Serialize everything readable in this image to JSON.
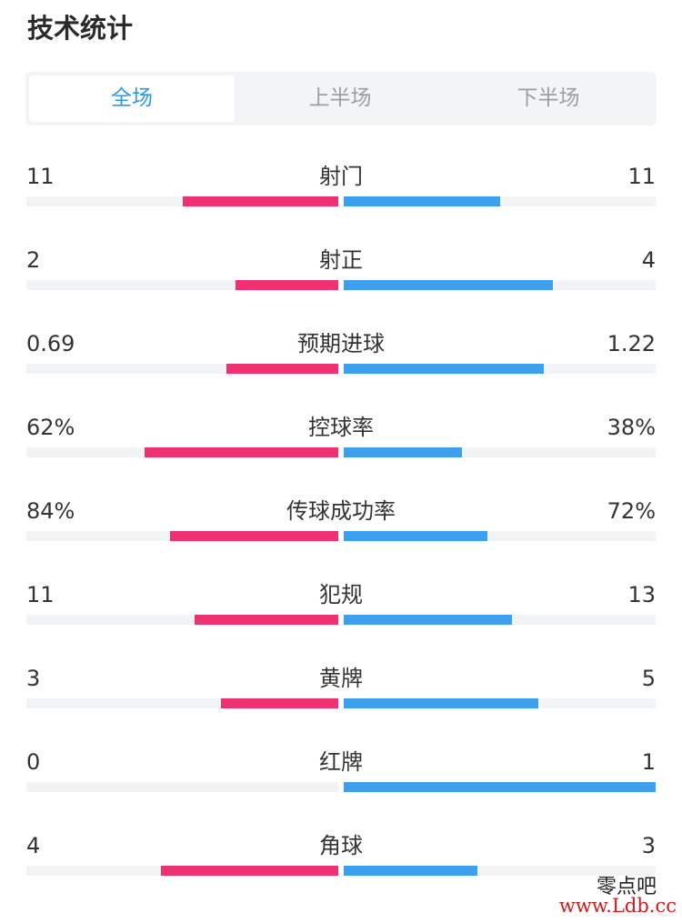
{
  "page_title": "技术统计",
  "tabs": [
    {
      "label": "全场",
      "active": true
    },
    {
      "label": "上半场",
      "active": false
    },
    {
      "label": "下半场",
      "active": false
    }
  ],
  "colors": {
    "home": "#ee3170",
    "away": "#3d9ff0",
    "track": "#f2f3f5",
    "active_tab": "#2b9ae3"
  },
  "stats": [
    {
      "label": "射门",
      "home": "11",
      "away": "11",
      "home_ratio": 0.5,
      "away_ratio": 0.5
    },
    {
      "label": "射正",
      "home": "2",
      "away": "4",
      "home_ratio": 0.33,
      "away_ratio": 0.67
    },
    {
      "label": "预期进球",
      "home": "0.69",
      "away": "1.22",
      "home_ratio": 0.36,
      "away_ratio": 0.64
    },
    {
      "label": "控球率",
      "home": "62%",
      "away": "38%",
      "home_ratio": 0.62,
      "away_ratio": 0.38
    },
    {
      "label": "传球成功率",
      "home": "84%",
      "away": "72%",
      "home_ratio": 0.54,
      "away_ratio": 0.46
    },
    {
      "label": "犯规",
      "home": "11",
      "away": "13",
      "home_ratio": 0.46,
      "away_ratio": 0.54
    },
    {
      "label": "黄牌",
      "home": "3",
      "away": "5",
      "home_ratio": 0.375,
      "away_ratio": 0.625
    },
    {
      "label": "红牌",
      "home": "0",
      "away": "1",
      "home_ratio": 0.0,
      "away_ratio": 1.0
    },
    {
      "label": "角球",
      "home": "4",
      "away": "3",
      "home_ratio": 0.57,
      "away_ratio": 0.43
    }
  ],
  "watermark": {
    "title": "零点吧",
    "url": "www.Ldb.cc"
  }
}
